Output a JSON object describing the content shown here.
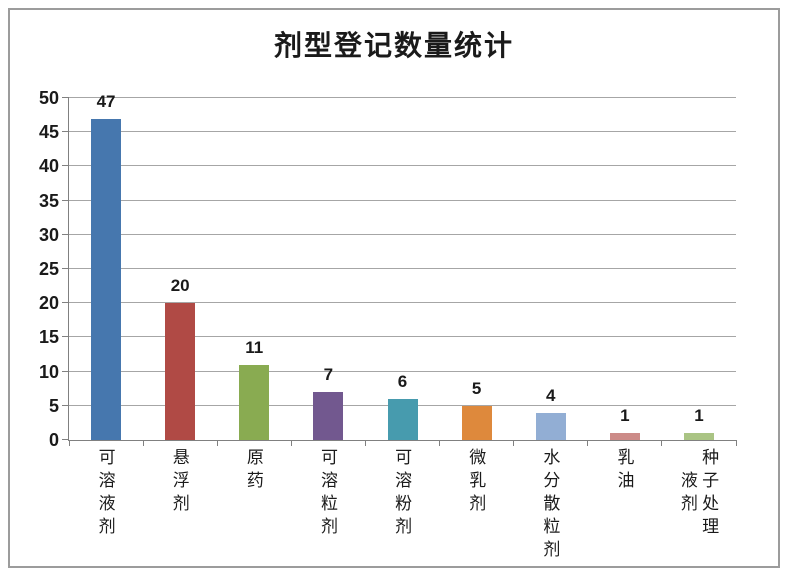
{
  "chart_data": {
    "type": "bar",
    "title": "剂型登记数量统计",
    "categories": [
      "可溶液剂",
      "悬浮剂",
      "原药",
      "可溶粒剂",
      "可溶粉剂",
      "微乳剂",
      "水分散粒剂",
      "乳油",
      "种子处理液剂"
    ],
    "category_lines": [
      [
        "可溶液剂"
      ],
      [
        "悬浮剂"
      ],
      [
        "原药"
      ],
      [
        "可溶粒剂"
      ],
      [
        "可溶粉剂"
      ],
      [
        "微乳剂"
      ],
      [
        "水分散粒剂"
      ],
      [
        "乳油"
      ],
      [
        "种子处理",
        "液剂"
      ]
    ],
    "values": [
      47,
      20,
      11,
      7,
      6,
      5,
      4,
      1,
      1
    ],
    "data_labels": [
      "47",
      "20",
      "11",
      "7",
      "6",
      "5",
      "4",
      "1",
      "1"
    ],
    "bar_colors": [
      "#4677ae",
      "#b04a45",
      "#89ab51",
      "#72588f",
      "#479bae",
      "#de893c",
      "#92aed4",
      "#cc8b88",
      "#aac484"
    ],
    "ylim": [
      0,
      50
    ],
    "ytick_step": 5,
    "ytick_labels": [
      "0",
      "5",
      "10",
      "15",
      "20",
      "25",
      "30",
      "35",
      "40",
      "45",
      "50"
    ],
    "grid": true,
    "legend": "none",
    "xlabel": "",
    "ylabel": "",
    "gridline_color": "#a6a6a6",
    "axis_color": "#808080",
    "frame_border_color": "#9c9c9c",
    "text_color": "#1a1a1a"
  }
}
